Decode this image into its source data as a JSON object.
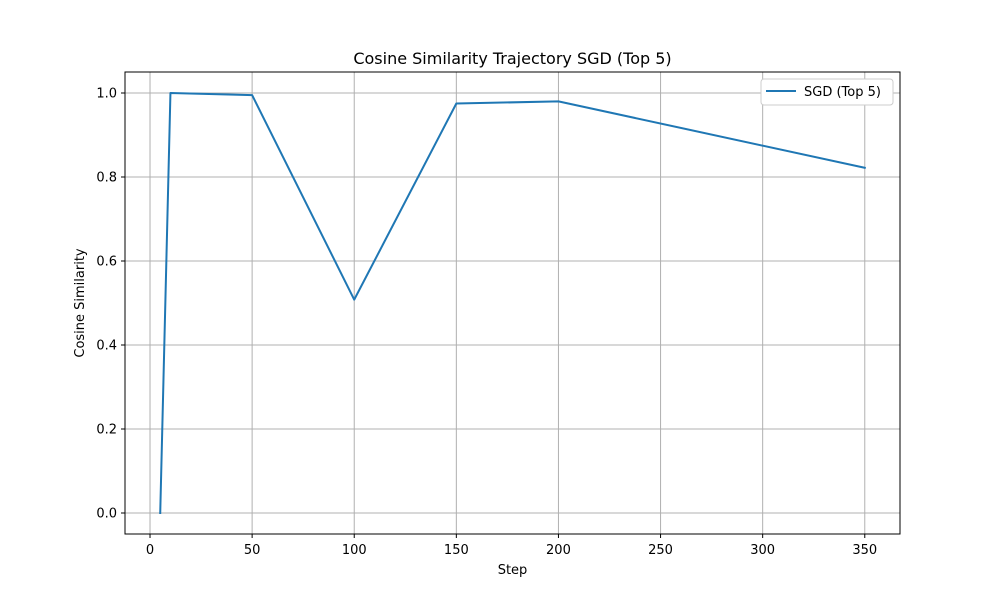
{
  "chart_data": {
    "type": "line",
    "title": "Cosine Similarity Trajectory SGD (Top 5)",
    "xlabel": "Step",
    "ylabel": "Cosine Similarity",
    "xlim": [
      -12.25,
      367.25
    ],
    "ylim": [
      -0.05,
      1.05
    ],
    "xticks": [
      0,
      50,
      100,
      150,
      200,
      250,
      300,
      350
    ],
    "xtick_labels": [
      "0",
      "50",
      "100",
      "150",
      "200",
      "250",
      "300",
      "350"
    ],
    "yticks": [
      0.0,
      0.2,
      0.4,
      0.6,
      0.8,
      1.0
    ],
    "ytick_labels": [
      "0.0",
      "0.2",
      "0.4",
      "0.6",
      "0.8",
      "1.0"
    ],
    "grid": true,
    "legend_position": "top-right",
    "series": [
      {
        "name": "SGD (Top 5)",
        "color": "#1f77b4",
        "x": [
          5,
          10,
          50,
          100,
          150,
          200,
          350
        ],
        "y": [
          0.0,
          1.0,
          0.995,
          0.508,
          0.975,
          0.98,
          0.822
        ]
      }
    ]
  }
}
